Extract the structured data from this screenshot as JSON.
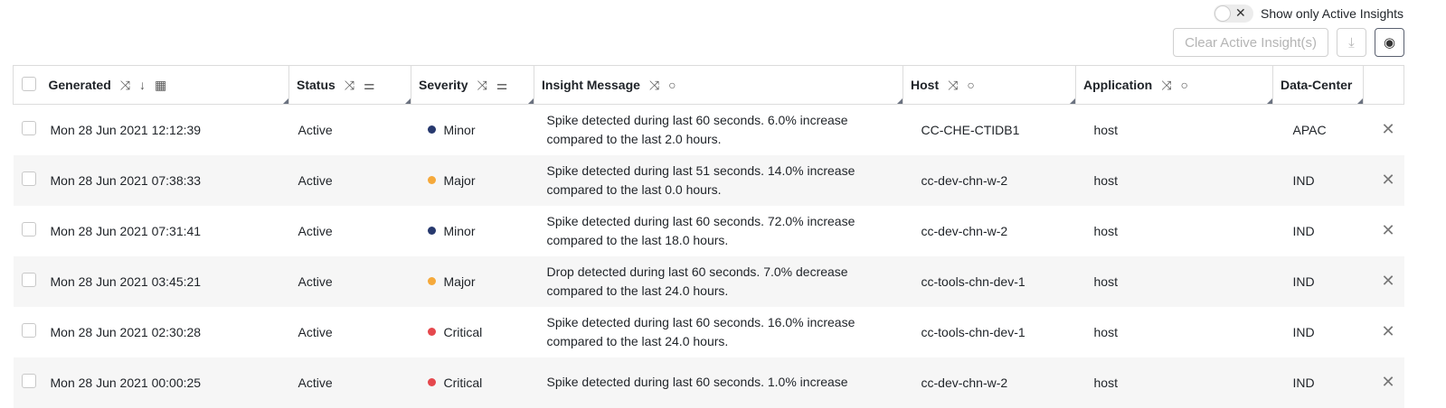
{
  "toolbar": {
    "toggle_label": "Show only Active Insights",
    "toggle_on": false,
    "clear_label": "Clear Active Insight(s)"
  },
  "columns": [
    "Generated",
    "Status",
    "Severity",
    "Insight Message",
    "Host",
    "Application",
    "Data-Center"
  ],
  "severity_colors": {
    "Minor": "#27396e",
    "Major": "#f5a93b",
    "Critical": "#e5484d"
  },
  "rows": [
    {
      "generated": "Mon 28 Jun 2021 12:12:39",
      "status": "Active",
      "severity": "Minor",
      "message": "Spike detected during last 60 seconds. 6.0% increase compared to the last 2.0 hours.",
      "host": "CC-CHE-CTIDB1",
      "application": "host",
      "dc": "APAC"
    },
    {
      "generated": "Mon 28 Jun 2021 07:38:33",
      "status": "Active",
      "severity": "Major",
      "message": "Spike detected during last 51 seconds. 14.0% increase compared to the last 0.0 hours.",
      "host": "cc-dev-chn-w-2",
      "application": "host",
      "dc": "IND"
    },
    {
      "generated": "Mon 28 Jun 2021 07:31:41",
      "status": "Active",
      "severity": "Minor",
      "message": "Spike detected during last 60 seconds. 72.0% increase compared to the last 18.0 hours.",
      "host": "cc-dev-chn-w-2",
      "application": "host",
      "dc": "IND"
    },
    {
      "generated": "Mon 28 Jun 2021 03:45:21",
      "status": "Active",
      "severity": "Major",
      "message": "Drop detected during last 60 seconds. 7.0% decrease compared to the last 24.0 hours.",
      "host": "cc-tools-chn-dev-1",
      "application": "host",
      "dc": "IND"
    },
    {
      "generated": "Mon 28 Jun 2021 02:30:28",
      "status": "Active",
      "severity": "Critical",
      "message": "Spike detected during last 60 seconds. 16.0% increase compared to the last 24.0 hours.",
      "host": "cc-tools-chn-dev-1",
      "application": "host",
      "dc": "IND"
    },
    {
      "generated": "Mon 28 Jun 2021 00:00:25",
      "status": "Active",
      "severity": "Critical",
      "message": "Spike detected during last 60 seconds. 1.0% increase",
      "host": "cc-dev-chn-w-2",
      "application": "host",
      "dc": "IND"
    }
  ]
}
